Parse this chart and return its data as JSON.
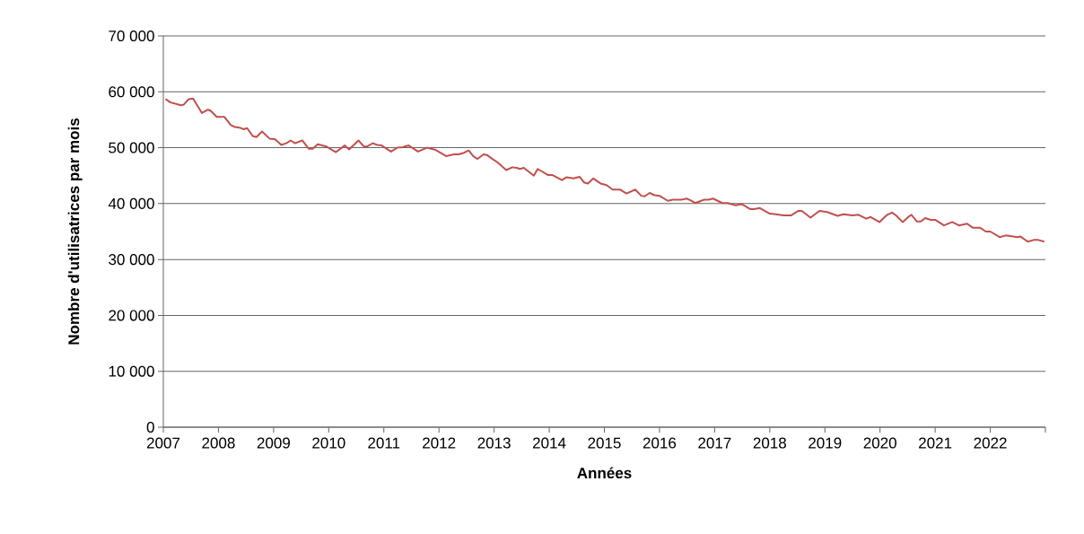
{
  "chart_data": {
    "type": "line",
    "xlabel": "Années",
    "ylabel": "Nombre d'utilisatrices par mois",
    "xlim": [
      2007,
      2023
    ],
    "ylim": [
      0,
      70000
    ],
    "xticks": [
      2007,
      2008,
      2009,
      2010,
      2011,
      2012,
      2013,
      2014,
      2015,
      2016,
      2017,
      2018,
      2019,
      2020,
      2021,
      2022,
      {
        "value": 2023,
        "label": null
      }
    ],
    "yticks": [
      0,
      {
        "value": 10000,
        "label": "10 000"
      },
      {
        "value": 20000,
        "label": "20 000"
      },
      {
        "value": 30000,
        "label": "30 000"
      },
      {
        "value": 40000,
        "label": "40 000"
      },
      {
        "value": 50000,
        "label": "50 000"
      },
      {
        "value": 60000,
        "label": "60 000"
      },
      {
        "value": 70000,
        "label": "70 000"
      }
    ],
    "grid": "y",
    "marker": "none",
    "line_style": "solid",
    "series": [
      {
        "color": "#c0504d",
        "x": [
          2007.04,
          2007.13,
          2007.32,
          2007.37,
          2007.46,
          2007.54,
          2007.7,
          2007.81,
          2007.86,
          2007.97,
          2008.11,
          2008.22,
          2008.3,
          2008.38,
          2008.46,
          2008.52,
          2008.62,
          2008.69,
          2008.79,
          2008.93,
          2009.03,
          2009.14,
          2009.23,
          2009.31,
          2009.39,
          2009.52,
          2009.64,
          2009.71,
          2009.8,
          2009.96,
          2010.13,
          2010.29,
          2010.37,
          2010.54,
          2010.64,
          2010.69,
          2010.8,
          2010.88,
          2010.96,
          2011.13,
          2011.24,
          2011.34,
          2011.45,
          2011.62,
          2011.78,
          2011.94,
          2012.13,
          2012.27,
          2012.35,
          2012.43,
          2012.54,
          2012.62,
          2012.7,
          2012.81,
          2012.87,
          2012.98,
          2013.06,
          2013.22,
          2013.33,
          2013.41,
          2013.47,
          2013.54,
          2013.72,
          2013.79,
          2013.98,
          2014.06,
          2014.23,
          2014.31,
          2014.44,
          2014.55,
          2014.63,
          2014.7,
          2014.8,
          2014.93,
          2015.04,
          2015.15,
          2015.29,
          2015.4,
          2015.56,
          2015.67,
          2015.73,
          2015.82,
          2015.91,
          2016.0,
          2016.15,
          2016.24,
          2016.4,
          2016.49,
          2016.56,
          2016.65,
          2016.81,
          2016.89,
          2016.97,
          2017.14,
          2017.24,
          2017.38,
          2017.49,
          2017.65,
          2017.72,
          2017.82,
          2018.0,
          2018.11,
          2018.25,
          2018.39,
          2018.52,
          2018.58,
          2018.74,
          2018.9,
          2019.04,
          2019.23,
          2019.34,
          2019.5,
          2019.61,
          2019.75,
          2019.83,
          2019.99,
          2020.13,
          2020.22,
          2020.29,
          2020.41,
          2020.5,
          2020.57,
          2020.67,
          2020.74,
          2020.82,
          2020.92,
          2021.0,
          2021.16,
          2021.31,
          2021.43,
          2021.58,
          2021.68,
          2021.81,
          2021.92,
          2022.0,
          2022.17,
          2022.28,
          2022.49,
          2022.55,
          2022.68,
          2022.79,
          2022.87,
          2022.98
        ],
        "values": [
          58700,
          58100,
          57600,
          57700,
          58700,
          58800,
          56200,
          56800,
          56600,
          55500,
          55500,
          54100,
          53700,
          53600,
          53300,
          53500,
          52100,
          51900,
          52900,
          51600,
          51500,
          50500,
          50800,
          51300,
          50800,
          51300,
          49800,
          49800,
          50600,
          50200,
          49200,
          50400,
          49700,
          51300,
          50200,
          50200,
          50800,
          50500,
          50400,
          49300,
          50000,
          50100,
          50400,
          49300,
          50000,
          49600,
          48500,
          48800,
          48800,
          49000,
          49500,
          48500,
          48000,
          48800,
          48700,
          47900,
          47400,
          46000,
          46500,
          46400,
          46200,
          46400,
          45000,
          46200,
          45100,
          45100,
          44200,
          44700,
          44500,
          44800,
          43800,
          43600,
          44500,
          43600,
          43300,
          42500,
          42500,
          41800,
          42500,
          41400,
          41300,
          41900,
          41500,
          41400,
          40500,
          40700,
          40700,
          40900,
          40600,
          40100,
          40700,
          40700,
          40900,
          40100,
          40100,
          39700,
          39900,
          39000,
          39000,
          39200,
          38200,
          38100,
          37900,
          37900,
          38700,
          38700,
          37500,
          38700,
          38500,
          37800,
          38100,
          37900,
          38000,
          37300,
          37600,
          36700,
          38000,
          38400,
          37900,
          36700,
          37500,
          38000,
          36800,
          36800,
          37400,
          37100,
          37100,
          36100,
          36700,
          36100,
          36400,
          35700,
          35700,
          35000,
          35000,
          34000,
          34300,
          34000,
          34100,
          33200,
          33500,
          33500,
          33200
        ]
      }
    ]
  }
}
